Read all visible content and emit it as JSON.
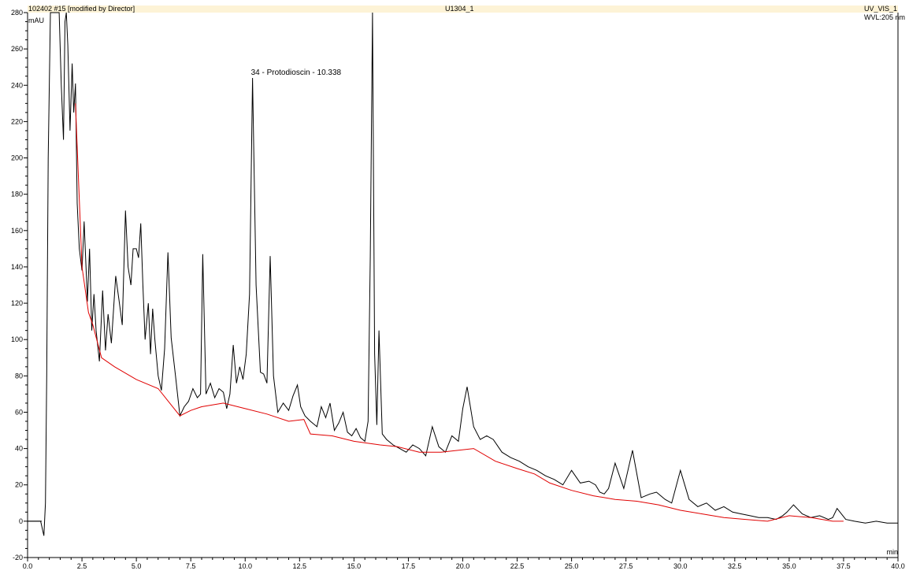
{
  "header": {
    "sample": "102402 #15 [modified by Director]",
    "run": "U1304_1",
    "channel": "UV_VIS_1",
    "wavelength": "WVL:205 nm"
  },
  "chart_data": {
    "type": "line",
    "title": "",
    "xlabel": "min",
    "ylabel": "mAU",
    "xlim": [
      0,
      40
    ],
    "ylim": [
      -20,
      280
    ],
    "x_ticks": [
      "0.0",
      "2.5",
      "5.0",
      "7.5",
      "10.0",
      "12.5",
      "15.0",
      "17.5",
      "20.0",
      "22.5",
      "25.0",
      "27.5",
      "30.0",
      "32.5",
      "35.0",
      "37.5",
      "40.0"
    ],
    "y_ticks": [
      "-20",
      "0",
      "20",
      "40",
      "60",
      "80",
      "100",
      "120",
      "140",
      "160",
      "180",
      "200",
      "220",
      "240",
      "260",
      "280"
    ],
    "grid": false,
    "series": [
      {
        "color": "#000000",
        "x": [
          0.0,
          0.6,
          0.75,
          0.82,
          0.88,
          0.95,
          1.05,
          1.15,
          1.25,
          1.35,
          1.45,
          1.55,
          1.65,
          1.72,
          1.78,
          1.85,
          1.95,
          2.05,
          2.12,
          2.2,
          2.28,
          2.38,
          2.5,
          2.6,
          2.75,
          2.85,
          2.95,
          3.05,
          3.15,
          3.3,
          3.45,
          3.58,
          3.7,
          3.85,
          4.05,
          4.2,
          4.35,
          4.5,
          4.62,
          4.75,
          4.85,
          5.0,
          5.1,
          5.2,
          5.3,
          5.4,
          5.55,
          5.65,
          5.75,
          5.85,
          6.0,
          6.15,
          6.3,
          6.45,
          6.6,
          6.8,
          7.0,
          7.2,
          7.4,
          7.6,
          7.8,
          7.95,
          8.05,
          8.2,
          8.4,
          8.6,
          8.8,
          9.0,
          9.15,
          9.3,
          9.45,
          9.6,
          9.75,
          9.9,
          10.05,
          10.2,
          10.338,
          10.5,
          10.7,
          10.85,
          11.0,
          11.15,
          11.3,
          11.5,
          11.75,
          12.0,
          12.2,
          12.4,
          12.55,
          12.75,
          13.0,
          13.3,
          13.5,
          13.7,
          13.9,
          14.1,
          14.3,
          14.5,
          14.7,
          14.9,
          15.1,
          15.3,
          15.5,
          15.65,
          15.75,
          15.85,
          15.95,
          16.05,
          16.15,
          16.3,
          16.5,
          16.8,
          17.1,
          17.4,
          17.7,
          18.0,
          18.3,
          18.6,
          18.9,
          19.2,
          19.5,
          19.8,
          20.0,
          20.2,
          20.5,
          20.8,
          21.1,
          21.4,
          21.8,
          22.2,
          22.6,
          23.0,
          23.4,
          23.8,
          24.2,
          24.6,
          25.0,
          25.4,
          25.8,
          26.1,
          26.3,
          26.5,
          26.7,
          27.0,
          27.4,
          27.8,
          28.2,
          28.6,
          28.9,
          29.1,
          29.3,
          29.6,
          30.0,
          30.4,
          30.8,
          31.2,
          31.6,
          32.0,
          32.4,
          32.8,
          33.2,
          33.6,
          34.0,
          34.4,
          34.7,
          34.9,
          35.2,
          35.6,
          36.0,
          36.4,
          36.8,
          37.0,
          37.2,
          37.6,
          38.0,
          38.5,
          39.0,
          39.5,
          40.0
        ],
        "y": [
          0,
          0,
          -8,
          10,
          80,
          200,
          280,
          280,
          280,
          280,
          280,
          240,
          210,
          275,
          280,
          262,
          215,
          252,
          225,
          241,
          175,
          150,
          138,
          165,
          121,
          150,
          105,
          125,
          105,
          88,
          127,
          94,
          114,
          98,
          135,
          122,
          108,
          171,
          140,
          130,
          150,
          150,
          145,
          164,
          130,
          100,
          120,
          92,
          117,
          100,
          80,
          72,
          95,
          148,
          101,
          80,
          58,
          63,
          66,
          73,
          68,
          70,
          147,
          70,
          76,
          68,
          73,
          71,
          62,
          70,
          97,
          76,
          85,
          78,
          92,
          125,
          244,
          130,
          82,
          81,
          76,
          146,
          80,
          60,
          65,
          61,
          69,
          75,
          63,
          58,
          55,
          52,
          63,
          57,
          65,
          50,
          54,
          60,
          49,
          47,
          51,
          46,
          44,
          55,
          146,
          280,
          92,
          53,
          105,
          48,
          45,
          42,
          40,
          38,
          42,
          40,
          36,
          52,
          41,
          38,
          47,
          44,
          62,
          74,
          52,
          45,
          47,
          45,
          38,
          35,
          33,
          30,
          28,
          25,
          23,
          20,
          28,
          21,
          22,
          20,
          16,
          15,
          18,
          32,
          18,
          39,
          13,
          15,
          16,
          14,
          12,
          10,
          28,
          12,
          8,
          10,
          6,
          8,
          5,
          4,
          3,
          2,
          2,
          1,
          3,
          5,
          9,
          4,
          2,
          3,
          1,
          2,
          7,
          1,
          0,
          -1,
          0,
          -1,
          -1
        ]
      },
      {
        "color": "#e00000",
        "x": [
          2.2,
          2.5,
          2.8,
          3.0,
          3.4,
          4.0,
          5.0,
          6.0,
          7.0,
          7.5,
          8.0,
          9.0,
          10.0,
          11.0,
          12.0,
          12.7,
          13.0,
          14.0,
          15.0,
          16.2,
          17.0,
          18.0,
          19.0,
          20.5,
          21.5,
          22.5,
          23.3,
          24.0,
          25.0,
          26.0,
          27.0,
          28.0,
          29.0,
          30.0,
          31.0,
          32.0,
          33.0,
          34.0,
          35.0,
          36.0,
          37.0,
          37.5
        ],
        "y": [
          230,
          140,
          115,
          108,
          90,
          85,
          78,
          73,
          58,
          61,
          63,
          65,
          62,
          59,
          55,
          56,
          48,
          47,
          44,
          42,
          41,
          38,
          38,
          40,
          33,
          29,
          26,
          21,
          17,
          14,
          12,
          11,
          9,
          6,
          4,
          2,
          1,
          0,
          3,
          2,
          0,
          0
        ]
      }
    ],
    "annotations": [
      {
        "text": "34 - Protodioscin - 10.338",
        "x": 10.338,
        "y": 244
      }
    ]
  }
}
